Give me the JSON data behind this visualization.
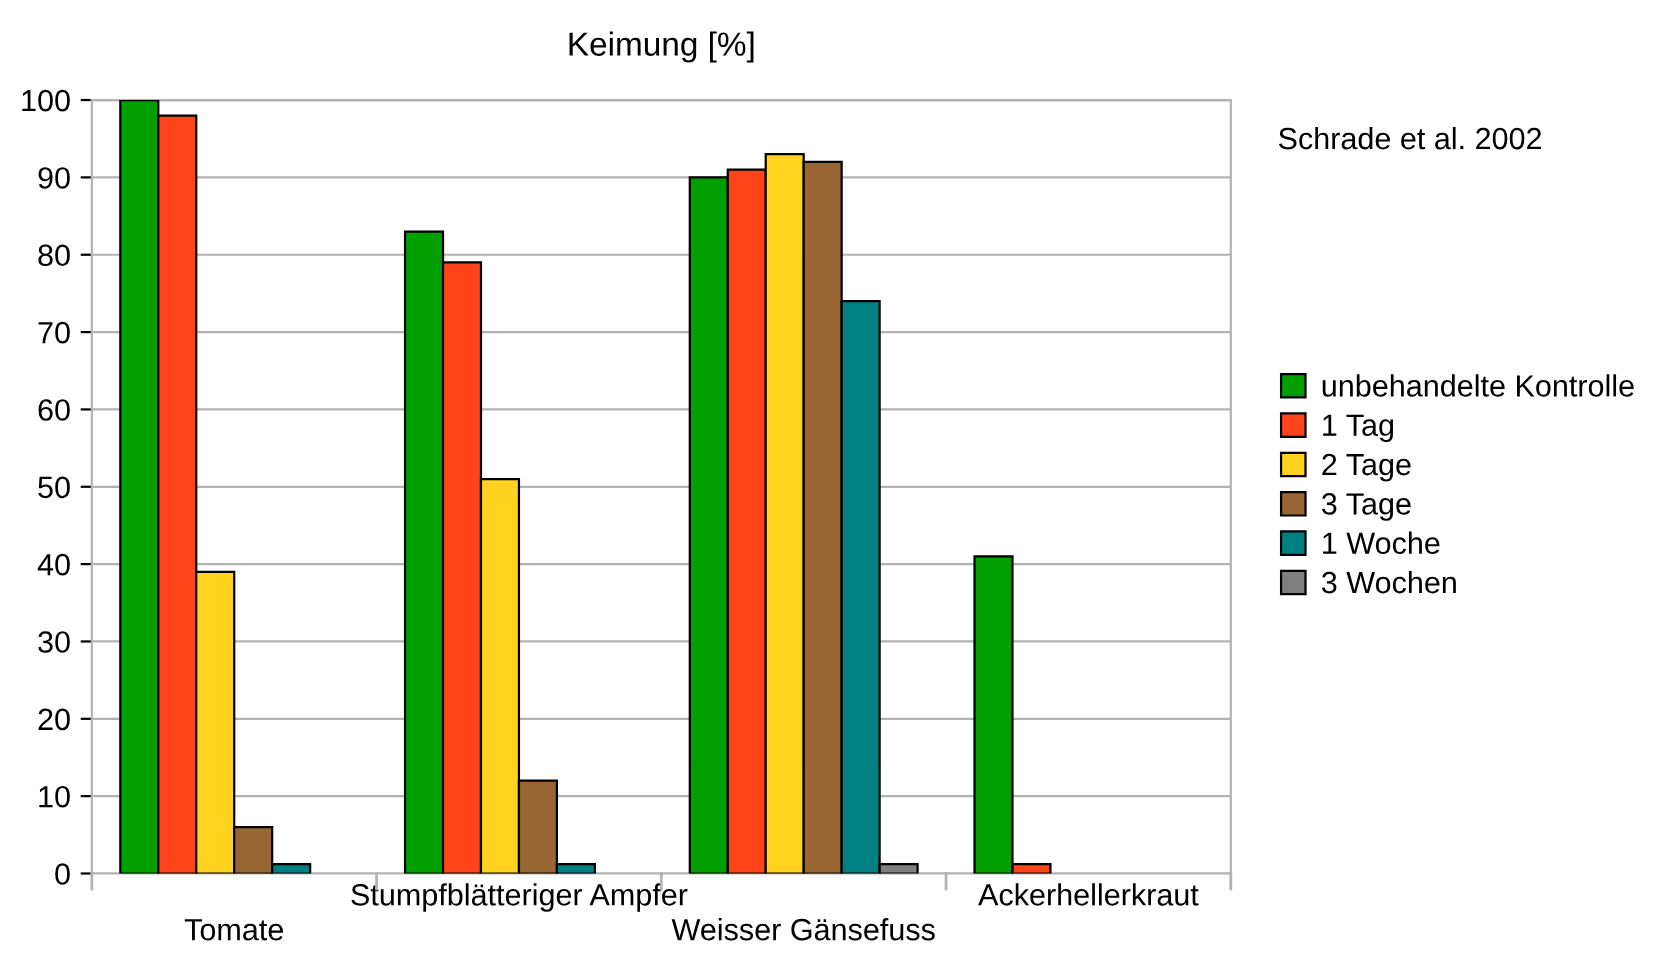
{
  "chart_data": {
    "type": "bar",
    "title": "Keimung [%]",
    "categories": [
      "Tomate",
      "Stumpfblätteriger Ampfer",
      "Weisser Gänsefuss",
      "Ackerhellerkraut"
    ],
    "series": [
      {
        "name": "unbehandelte Kontrolle",
        "color": "#00a000",
        "values": [
          100,
          83,
          90,
          41
        ]
      },
      {
        "name": "1 Tag",
        "color": "#ff4419",
        "values": [
          98,
          79,
          91,
          1.2
        ]
      },
      {
        "name": "2 Tage",
        "color": "#ffd320",
        "values": [
          39,
          51,
          93,
          null
        ]
      },
      {
        "name": "3 Tage",
        "color": "#996633",
        "values": [
          6,
          12,
          92,
          null
        ]
      },
      {
        "name": "1 Woche",
        "color": "#008080",
        "values": [
          1.2,
          1.2,
          74,
          null
        ]
      },
      {
        "name": "3 Wochen",
        "color": "#808080",
        "values": [
          null,
          null,
          1.2,
          null
        ]
      }
    ],
    "ylim": [
      0,
      100
    ],
    "yticks": [
      0,
      10,
      20,
      30,
      40,
      50,
      60,
      70,
      80,
      90,
      100
    ],
    "grid": "y",
    "legend": "right",
    "annotations": [
      "Schrade et al. 2002"
    ]
  }
}
